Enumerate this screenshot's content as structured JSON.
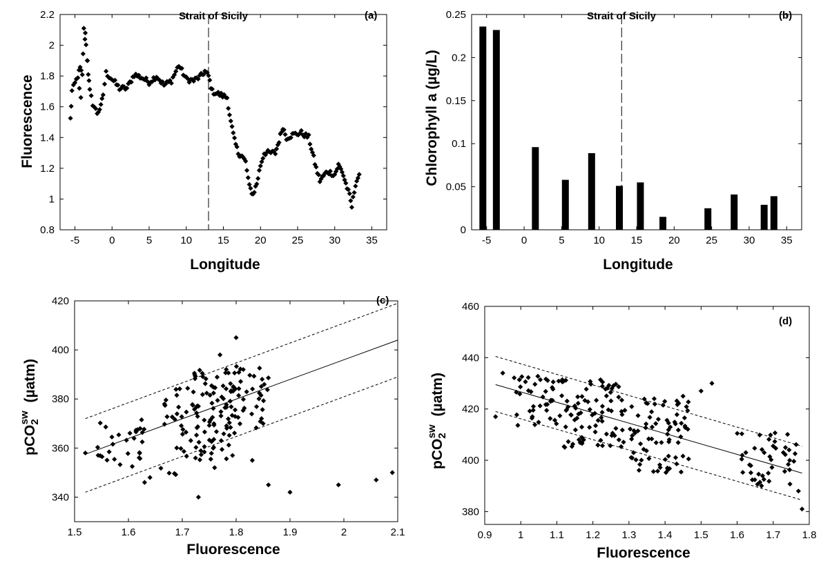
{
  "chart_data": [
    {
      "panel": "(a)",
      "type": "scatter",
      "xlabel": "Longitude",
      "ylabel": "Fluorescence",
      "xlim": [
        -7,
        37
      ],
      "ylim": [
        0.8,
        2.2
      ],
      "xticks": [
        -5,
        0,
        5,
        10,
        15,
        20,
        25,
        30,
        35
      ],
      "yticks": [
        0.8,
        1,
        1.2,
        1.4,
        1.6,
        1.8,
        2,
        2.2
      ],
      "annotation": "Strait of Sicily",
      "vline_x": 13,
      "grid": false,
      "legend": "none",
      "profile": [
        [
          -5.6,
          1.52
        ],
        [
          -5.4,
          1.7
        ],
        [
          -5.0,
          1.75
        ],
        [
          -4.6,
          1.8
        ],
        [
          -4.3,
          1.85
        ],
        [
          -4.0,
          1.8
        ],
        [
          -3.8,
          2.1
        ],
        [
          -3.5,
          2.0
        ],
        [
          -3.2,
          1.82
        ],
        [
          -3.0,
          1.7
        ],
        [
          -2.6,
          1.62
        ],
        [
          -2.0,
          1.56
        ],
        [
          -1.5,
          1.6
        ],
        [
          -1.2,
          1.68
        ],
        [
          -0.8,
          1.82
        ],
        [
          0,
          1.78
        ],
        [
          1,
          1.72
        ],
        [
          2,
          1.72
        ],
        [
          3,
          1.81
        ],
        [
          4,
          1.79
        ],
        [
          5,
          1.76
        ],
        [
          6,
          1.8
        ],
        [
          7,
          1.74
        ],
        [
          8,
          1.77
        ],
        [
          9,
          1.87
        ],
        [
          10,
          1.78
        ],
        [
          11,
          1.77
        ],
        [
          12,
          1.8
        ],
        [
          12.5,
          1.83
        ],
        [
          13,
          1.8
        ],
        [
          13.5,
          1.7
        ],
        [
          14.5,
          1.68
        ],
        [
          15.5,
          1.66
        ],
        [
          16,
          1.5
        ],
        [
          16.5,
          1.38
        ],
        [
          17,
          1.3
        ],
        [
          17.5,
          1.28
        ],
        [
          18,
          1.24
        ],
        [
          18.5,
          1.08
        ],
        [
          19,
          1.03
        ],
        [
          19.5,
          1.1
        ],
        [
          20,
          1.22
        ],
        [
          20.5,
          1.3
        ],
        [
          21,
          1.3
        ],
        [
          22,
          1.3
        ],
        [
          22.5,
          1.38
        ],
        [
          23,
          1.47
        ],
        [
          23.5,
          1.4
        ],
        [
          24.5,
          1.42
        ],
        [
          25.5,
          1.43
        ],
        [
          26.5,
          1.4
        ],
        [
          27,
          1.3
        ],
        [
          27.5,
          1.2
        ],
        [
          28,
          1.12
        ],
        [
          28.5,
          1.15
        ],
        [
          29,
          1.18
        ],
        [
          30,
          1.16
        ],
        [
          30.5,
          1.22
        ],
        [
          31,
          1.18
        ],
        [
          31.5,
          1.1
        ],
        [
          32,
          1.02
        ],
        [
          32.3,
          0.95
        ],
        [
          32.8,
          1.1
        ],
        [
          33.3,
          1.16
        ]
      ]
    },
    {
      "panel": "(b)",
      "type": "bar",
      "xlabel": "Longitude",
      "ylabel": "Chlorophyll a (µg/L)",
      "xlim": [
        -7,
        37
      ],
      "ylim": [
        0,
        0.25
      ],
      "xticks": [
        -5,
        0,
        5,
        10,
        15,
        20,
        25,
        30,
        35
      ],
      "yticks": [
        0,
        0.05,
        0.1,
        0.15,
        0.2,
        0.25
      ],
      "annotation": "Strait of Sicily",
      "vline_x": 13,
      "grid": false,
      "legend": "none",
      "x": [
        -5.5,
        -3.7,
        1.5,
        5.5,
        9.0,
        12.7,
        15.5,
        18.5,
        24.5,
        28.0,
        32.0,
        33.3
      ],
      "values": [
        0.236,
        0.232,
        0.096,
        0.058,
        0.089,
        0.051,
        0.055,
        0.015,
        0.025,
        0.041,
        0.029,
        0.039
      ]
    },
    {
      "panel": "(c)",
      "type": "scatter",
      "xlabel": "Fluorescence",
      "ylabel": "pCO2sw (µatm)",
      "xlim": [
        1.5,
        2.1
      ],
      "ylim": [
        330,
        420
      ],
      "xticks": [
        1.5,
        1.6,
        1.7,
        1.8,
        1.9,
        2,
        2.1
      ],
      "yticks": [
        340,
        360,
        380,
        400,
        420
      ],
      "fit_line": [
        [
          1.52,
          357.5
        ],
        [
          2.1,
          404
        ]
      ],
      "upper_band": [
        [
          1.52,
          372
        ],
        [
          2.1,
          419
        ]
      ],
      "lower_band": [
        [
          1.52,
          342
        ],
        [
          2.1,
          389
        ]
      ],
      "grid": false,
      "legend": "none",
      "outliers": [
        [
          1.52,
          358
        ],
        [
          1.73,
          340
        ],
        [
          1.86,
          345
        ],
        [
          1.9,
          342
        ],
        [
          1.99,
          345
        ],
        [
          2.06,
          347
        ],
        [
          2.09,
          350
        ],
        [
          1.8,
          405
        ],
        [
          1.77,
          398
        ],
        [
          1.83,
          355
        ],
        [
          1.76,
          352
        ],
        [
          1.63,
          346
        ],
        [
          1.64,
          348
        ]
      ],
      "clusters": [
        {
          "x": [
            1.54,
            1.63
          ],
          "y": [
            352,
            372
          ],
          "n": 30
        },
        {
          "x": [
            1.66,
            1.72
          ],
          "y": [
            348,
            385
          ],
          "n": 30
        },
        {
          "x": [
            1.72,
            1.8
          ],
          "y": [
            355,
            392
          ],
          "n": 80
        },
        {
          "x": [
            1.78,
            1.86
          ],
          "y": [
            368,
            395
          ],
          "n": 45
        }
      ]
    },
    {
      "panel": "(d)",
      "type": "scatter",
      "xlabel": "Fluorescence",
      "ylabel": "pCO2sw (µatm)",
      "xlim": [
        0.9,
        1.8
      ],
      "ylim": [
        375,
        460
      ],
      "xticks": [
        0.9,
        1,
        1.1,
        1.2,
        1.3,
        1.4,
        1.5,
        1.6,
        1.7,
        1.8
      ],
      "yticks": [
        380,
        400,
        420,
        440,
        460
      ],
      "fit_line": [
        [
          0.93,
          429.5
        ],
        [
          1.78,
          395
        ]
      ],
      "upper_band": [
        [
          0.93,
          440.5
        ],
        [
          1.78,
          405.5
        ]
      ],
      "lower_band": [
        [
          0.93,
          419
        ],
        [
          1.78,
          384.5
        ]
      ],
      "grid": false,
      "legend": "none",
      "outliers": [
        [
          0.93,
          417
        ],
        [
          0.95,
          434
        ],
        [
          1.53,
          430
        ],
        [
          1.5,
          427
        ],
        [
          1.45,
          425
        ],
        [
          1.78,
          381
        ],
        [
          1.77,
          388
        ],
        [
          1.37,
          424
        ]
      ],
      "clusters": [
        {
          "x": [
            0.98,
            1.12
          ],
          "y": [
            412,
            433
          ],
          "n": 45
        },
        {
          "x": [
            1.12,
            1.3
          ],
          "y": [
            405,
            432
          ],
          "n": 80
        },
        {
          "x": [
            1.3,
            1.47
          ],
          "y": [
            395,
            424
          ],
          "n": 75
        },
        {
          "x": [
            1.6,
            1.77
          ],
          "y": [
            390,
            412
          ],
          "n": 45
        }
      ]
    }
  ],
  "subscript": "2",
  "superscript": "sw",
  "ylabel_base": "pCO",
  "ylabel_units": "(µatm)"
}
